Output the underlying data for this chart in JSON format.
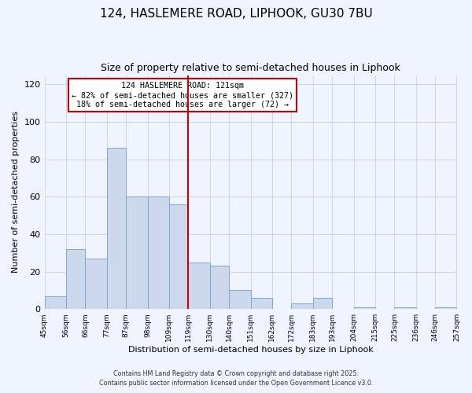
{
  "title": "124, HASLEMERE ROAD, LIPHOOK, GU30 7BU",
  "subtitle": "Size of property relative to semi-detached houses in Liphook",
  "xlabel": "Distribution of semi-detached houses by size in Liphook",
  "ylabel": "Number of semi-detached properties",
  "bins": [
    45,
    56,
    66,
    77,
    87,
    98,
    109,
    119,
    130,
    140,
    151,
    162,
    172,
    183,
    193,
    204,
    215,
    225,
    236,
    246,
    257
  ],
  "counts": [
    7,
    32,
    27,
    86,
    60,
    60,
    56,
    25,
    23,
    10,
    6,
    0,
    3,
    6,
    0,
    1,
    0,
    1,
    0,
    1
  ],
  "tick_labels": [
    "45sqm",
    "56sqm",
    "66sqm",
    "77sqm",
    "87sqm",
    "98sqm",
    "109sqm",
    "119sqm",
    "130sqm",
    "140sqm",
    "151sqm",
    "162sqm",
    "172sqm",
    "183sqm",
    "193sqm",
    "204sqm",
    "215sqm",
    "225sqm",
    "236sqm",
    "246sqm",
    "257sqm"
  ],
  "bar_color": "#ccd9ed",
  "bar_edge_color": "#7ba8d4",
  "vline_x": 119,
  "vline_color": "#cc0000",
  "annotation_title": "124 HASLEMERE ROAD: 121sqm",
  "annotation_line1": "← 82% of semi-detached houses are smaller (327)",
  "annotation_line2": "18% of semi-detached houses are larger (72) →",
  "annotation_box_color": "#ffffff",
  "annotation_box_edge": "#cc0000",
  "ylim": [
    0,
    125
  ],
  "yticks": [
    0,
    20,
    40,
    60,
    80,
    100,
    120
  ],
  "footer1": "Contains HM Land Registry data © Crown copyright and database right 2025.",
  "footer2": "Contains public sector information licensed under the Open Government Licence v3.0.",
  "background_color": "#f0f4ff",
  "grid_color": "#d0d8e8",
  "title_fontsize": 11,
  "subtitle_fontsize": 9
}
